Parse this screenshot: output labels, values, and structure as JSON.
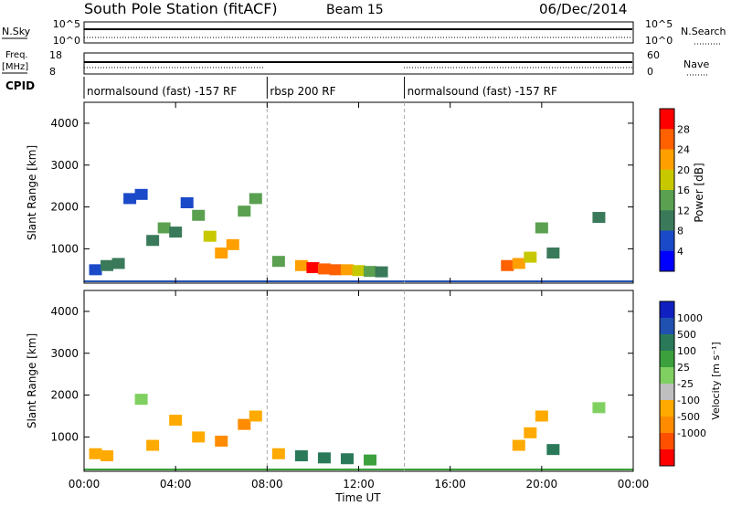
{
  "header": {
    "station": "South Pole Station (fitACF)",
    "beam": "Beam 15",
    "date": "06/Dec/2014"
  },
  "strips": {
    "nsky_label": "N.Sky",
    "nsky_top": "10^5",
    "nsky_bottom": "10^0",
    "nsearch_label": "N.Search",
    "freq_label": "Freq.",
    "freq_unit": "[MHz]",
    "freq_top": "18",
    "freq_bottom": "8",
    "nave_top": "60",
    "nave_bottom": "0",
    "nave_label": "Nave",
    "cpid_label": "CPID",
    "cpid_segments": [
      {
        "label": "normalsound (fast) -157 RF",
        "start": 0,
        "end": 8
      },
      {
        "label": "rbsp 200 RF",
        "start": 8,
        "end": 14
      },
      {
        "label": "normalsound (fast) -157 RF",
        "start": 14,
        "end": 24
      }
    ]
  },
  "colors": {
    "power": [
      "#0000ff",
      "#1a4ac8",
      "#3a7a5a",
      "#5aa050",
      "#c8c800",
      "#ffa000",
      "#ff6000",
      "#ff0000"
    ],
    "velocity": [
      "#ff0000",
      "#ff5000",
      "#ff8c00",
      "#ffaa00",
      "#bfbfbf",
      "#7fd060",
      "#3ca03c",
      "#2a7a5a",
      "#2050b0",
      "#1020c0"
    ]
  },
  "chart_data": [
    {
      "type": "heatmap",
      "title": "",
      "xlabel": "Time UT",
      "ylabel": "Slant Range [km]",
      "xlim": [
        0,
        24
      ],
      "ylim": [
        180,
        4500
      ],
      "x_ticks": [
        "00:00",
        "04:00",
        "08:00",
        "12:00",
        "16:00",
        "20:00",
        "00:00"
      ],
      "y_ticks": [
        "1000",
        "2000",
        "3000",
        "4000"
      ],
      "colorbar": {
        "label": "Power [dB]",
        "ticks": [
          "4",
          "8",
          "12",
          "16",
          "20",
          "24",
          "28"
        ],
        "range": [
          0,
          30
        ]
      },
      "cells": [
        [
          0.5,
          500,
          4
        ],
        [
          1.0,
          600,
          10
        ],
        [
          1.5,
          650,
          8
        ],
        [
          2.0,
          2200,
          6
        ],
        [
          2.5,
          2300,
          4
        ],
        [
          3.0,
          1200,
          10
        ],
        [
          3.5,
          1500,
          12
        ],
        [
          4.0,
          1400,
          8
        ],
        [
          4.5,
          2100,
          6
        ],
        [
          5.0,
          1800,
          12
        ],
        [
          5.5,
          1300,
          18
        ],
        [
          6.0,
          900,
          22
        ],
        [
          6.5,
          1100,
          20
        ],
        [
          7.0,
          1900,
          14
        ],
        [
          7.5,
          2200,
          12
        ],
        [
          8.5,
          700,
          14
        ],
        [
          9.5,
          600,
          20
        ],
        [
          10.0,
          550,
          28
        ],
        [
          10.5,
          520,
          24
        ],
        [
          11.0,
          500,
          26
        ],
        [
          11.5,
          500,
          22
        ],
        [
          12.0,
          480,
          18
        ],
        [
          12.5,
          460,
          14
        ],
        [
          13.0,
          450,
          10
        ],
        [
          18.5,
          600,
          26
        ],
        [
          19.0,
          650,
          22
        ],
        [
          19.5,
          800,
          16
        ],
        [
          20.0,
          1500,
          14
        ],
        [
          20.5,
          900,
          10
        ],
        [
          22.5,
          1750,
          8
        ]
      ]
    },
    {
      "type": "heatmap",
      "title": "",
      "xlabel": "Time UT",
      "ylabel": "Slant Range [km]",
      "xlim": [
        0,
        24
      ],
      "ylim": [
        180,
        4500
      ],
      "x_ticks": [
        "00:00",
        "04:00",
        "08:00",
        "12:00",
        "16:00",
        "20:00",
        "00:00"
      ],
      "y_ticks": [
        "1000",
        "2000",
        "3000",
        "4000"
      ],
      "colorbar": {
        "label": "Velocity [m s⁻¹]",
        "ticks": [
          "1000",
          "500",
          "100",
          "25",
          "-25",
          "-100",
          "-500",
          "-1000"
        ]
      },
      "cells": [
        [
          0.5,
          600,
          -150
        ],
        [
          1.0,
          550,
          -300
        ],
        [
          2.5,
          1900,
          10
        ],
        [
          3.0,
          800,
          -200
        ],
        [
          4.0,
          1400,
          -120
        ],
        [
          5.0,
          1000,
          -300
        ],
        [
          6.0,
          900,
          -500
        ],
        [
          7.0,
          1300,
          -600
        ],
        [
          7.5,
          1500,
          -400
        ],
        [
          8.5,
          600,
          -200
        ],
        [
          9.5,
          550,
          150
        ],
        [
          10.5,
          500,
          200
        ],
        [
          11.5,
          480,
          120
        ],
        [
          12.5,
          450,
          60
        ],
        [
          19.0,
          800,
          -400
        ],
        [
          19.5,
          1100,
          -300
        ],
        [
          20.0,
          1500,
          -200
        ],
        [
          20.5,
          700,
          150
        ],
        [
          22.5,
          1700,
          20
        ]
      ]
    }
  ]
}
